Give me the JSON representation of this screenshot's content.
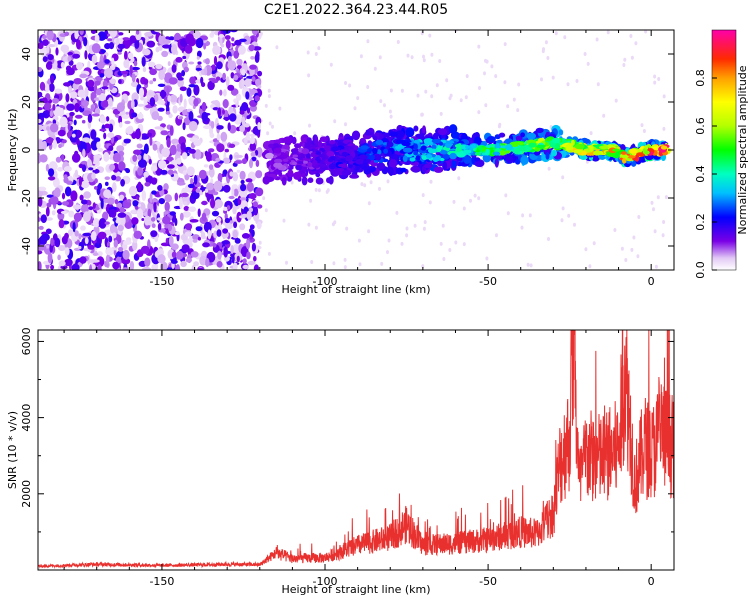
{
  "title": "C2E1.2022.364.23.44.R05",
  "chart_data": [
    {
      "type": "heatmap",
      "xlabel": "Height of straight line (km)",
      "ylabel": "Frequency (Hz)",
      "xlim": [
        -188,
        7
      ],
      "ylim": [
        -50,
        50
      ],
      "xticks": [
        -150,
        -100,
        -50,
        0
      ],
      "yticks": [
        -40,
        -20,
        0,
        20,
        40
      ],
      "grid": false,
      "colorbar": {
        "label": "Normalized spectral amplitude",
        "range": [
          0,
          1
        ],
        "ticks": [
          0.0,
          0.2,
          0.4,
          0.6,
          0.8
        ],
        "colormap": "rainbow (white to purple, blue, cyan, green, yellow, orange, red, magenta)"
      },
      "features": [
        {
          "name": "noise",
          "x_range": [
            -188,
            -120
          ],
          "freq_range": [
            -50,
            50
          ],
          "amplitude": 0.2
        },
        {
          "name": "signal_ridge",
          "points": [
            [
              -118,
              -4
            ],
            [
              -100,
              -4
            ],
            [
              -90,
              -2
            ],
            [
              -80,
              0
            ],
            [
              -70,
              0
            ],
            [
              -60,
              0
            ],
            [
              -50,
              0
            ],
            [
              -40,
              1
            ],
            [
              -30,
              3
            ],
            [
              -25,
              2
            ],
            [
              -20,
              0
            ],
            [
              -15,
              0
            ],
            [
              -10,
              -1
            ],
            [
              -8,
              -3
            ],
            [
              -5,
              -2
            ],
            [
              0,
              0
            ],
            [
              5,
              0
            ]
          ],
          "peak_amplitude": 1.0
        }
      ]
    },
    {
      "type": "line",
      "xlabel": "Height of straight line (km)",
      "ylabel": "SNR (10 * v/v)",
      "xlim": [
        -188,
        7
      ],
      "ylim": [
        0,
        6300
      ],
      "xticks": [
        -150,
        -100,
        -50,
        0
      ],
      "yticks": [
        2000,
        4000,
        6000
      ],
      "grid": false,
      "color": "#e8302e",
      "x": [
        -188,
        -170,
        -150,
        -130,
        -120,
        -115,
        -110,
        -100,
        -90,
        -80,
        -75,
        -70,
        -60,
        -50,
        -40,
        -35,
        -30,
        -28,
        -25,
        -24,
        -22,
        -20,
        -15,
        -10,
        -8,
        -5,
        -2,
        0,
        3,
        7
      ],
      "y": [
        100,
        150,
        120,
        150,
        140,
        450,
        300,
        320,
        650,
        850,
        1200,
        650,
        700,
        800,
        1000,
        950,
        1500,
        2800,
        3500,
        6200,
        2200,
        3000,
        2900,
        3200,
        5300,
        2300,
        3300,
        3000,
        3600,
        3200
      ]
    }
  ]
}
